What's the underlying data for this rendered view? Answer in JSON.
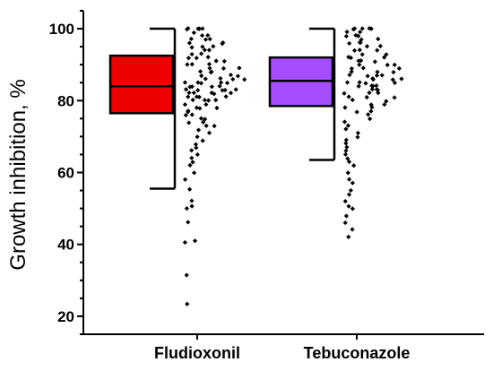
{
  "chart_data": {
    "type": "box",
    "title": "",
    "xlabel": "",
    "ylabel": "Growth inhibition, %",
    "ylim": [
      15,
      105
    ],
    "yticks": [
      20,
      40,
      60,
      80,
      100
    ],
    "grid": false,
    "categories": [
      "Fludioxonil",
      "Tebuconazole"
    ],
    "boxes": [
      {
        "category": "Fludioxonil",
        "whisker_low": 55.5,
        "q1": 76.5,
        "median": 84,
        "q3": 92.5,
        "whisker_high": 100,
        "fill": "#ee0000"
      },
      {
        "category": "Tebuconazole",
        "whisker_low": 63.5,
        "q1": 78.5,
        "median": 85.5,
        "q3": 92,
        "whisker_high": 100,
        "fill": "#a64dff"
      }
    ],
    "points": [
      {
        "category": "Fludioxonil",
        "values": [
          100,
          100,
          100,
          100,
          100,
          99,
          98,
          98,
          97,
          97,
          97,
          96,
          96,
          96,
          95,
          95,
          95,
          94,
          94,
          93,
          93,
          92,
          92,
          92,
          91,
          91,
          90,
          90,
          90,
          89,
          89,
          89,
          88,
          88,
          88,
          87,
          87,
          87,
          86,
          86,
          86,
          86,
          85,
          85,
          85,
          85,
          85,
          84,
          84,
          84,
          84,
          83,
          83,
          83,
          83,
          83,
          82,
          82,
          82,
          82,
          82,
          81,
          81,
          81,
          81,
          80,
          80,
          80,
          80,
          79,
          79,
          78,
          78,
          78,
          77,
          77,
          76,
          76,
          75,
          75,
          74,
          74,
          73,
          73,
          72,
          71,
          70,
          69,
          68,
          67,
          66,
          65,
          64,
          63,
          62,
          60,
          58,
          55.5,
          52,
          50.5,
          50,
          46,
          41,
          40.5,
          31.5,
          23.5
        ]
      },
      {
        "category": "Tebuconazole",
        "values": [
          100,
          100,
          100,
          100,
          100,
          99,
          99,
          98,
          98,
          98,
          97,
          97,
          96,
          96,
          96,
          95,
          95,
          94,
          94,
          94,
          93,
          93,
          92,
          92,
          92,
          91,
          91,
          91,
          90,
          90,
          90,
          89,
          89,
          89,
          88,
          88,
          88,
          87,
          87,
          87,
          87,
          86,
          86,
          86,
          86,
          85,
          85,
          85,
          85,
          84,
          84,
          84,
          84,
          83,
          83,
          83,
          82,
          82,
          82,
          81,
          81,
          81,
          80,
          80,
          79,
          79,
          78,
          78,
          77,
          77,
          76,
          75,
          74,
          73,
          72,
          71,
          70,
          69,
          68,
          67,
          66,
          65,
          64,
          63,
          62,
          60,
          58,
          57,
          55,
          54,
          52,
          50.5,
          50,
          48,
          46,
          44,
          42
        ]
      }
    ]
  }
}
